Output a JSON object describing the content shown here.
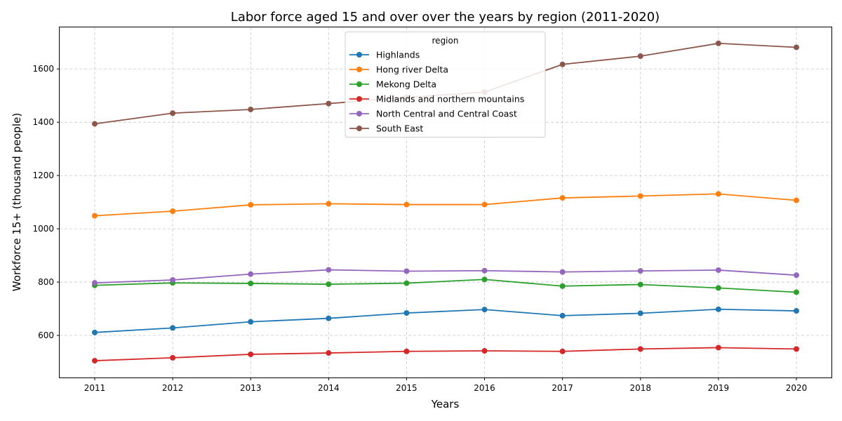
{
  "chart_data": {
    "type": "line",
    "title": "Labor force aged 15 and over over the years by region (2011-2020)",
    "xlabel": "Years",
    "ylabel": "Workforce 15+ (thousand people)",
    "x": [
      "2011",
      "2012",
      "2013",
      "2014",
      "2015",
      "2016",
      "2017",
      "2018",
      "2019",
      "2020"
    ],
    "xlim": [
      2010.55,
      2020.45
    ],
    "ylim": [
      442,
      1756
    ],
    "yticks": [
      600,
      800,
      1000,
      1200,
      1400,
      1600
    ],
    "grid": true,
    "legend": {
      "title": "region",
      "placement": "upper-center"
    },
    "series": [
      {
        "name": "Highlands",
        "color": "#1f77b4",
        "values": [
          611,
          628,
          651,
          664,
          684,
          697,
          674,
          683,
          698,
          692
        ]
      },
      {
        "name": "Hong river Delta",
        "color": "#ff7f0e",
        "values": [
          1049,
          1066,
          1090,
          1094,
          1091,
          1091,
          1116,
          1123,
          1131,
          1107
        ]
      },
      {
        "name": "Mekong Delta",
        "color": "#2ca02c",
        "values": [
          788,
          797,
          795,
          792,
          796,
          810,
          785,
          791,
          778,
          762
        ]
      },
      {
        "name": "Midlands and northern mountains",
        "color": "#d62728",
        "values": [
          505,
          516,
          529,
          534,
          540,
          542,
          540,
          549,
          554,
          549
        ]
      },
      {
        "name": "North Central and Central Coast",
        "color": "#9467bd",
        "values": [
          797,
          808,
          830,
          846,
          841,
          843,
          838,
          842,
          845,
          826
        ]
      },
      {
        "name": "South East",
        "color": "#8c564b",
        "values": [
          1394,
          1434,
          1448,
          1470,
          1493,
          1513,
          1617,
          1648,
          1696,
          1681
        ]
      }
    ]
  }
}
